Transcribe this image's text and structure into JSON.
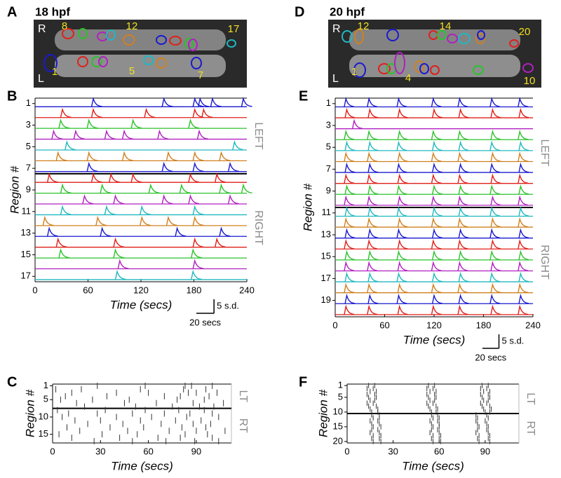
{
  "images": [
    {
      "panel": "A",
      "title": "18 hpf",
      "side_labels": [
        "R",
        "L"
      ],
      "region_labels": [
        "8",
        "12",
        "17",
        "1",
        "5",
        "7"
      ]
    },
    {
      "panel": "D",
      "title": "20 hpf",
      "side_labels": [
        "R",
        "L"
      ],
      "region_labels": [
        "12",
        "14",
        "20",
        "1",
        "4",
        "10"
      ]
    }
  ],
  "chart_data": [
    {
      "panel": "B",
      "type": "line",
      "ylabel": "Region #",
      "xlabel": "Time (secs)",
      "xlim": [
        0,
        240
      ],
      "xticks": [
        0,
        60,
        120,
        180,
        240
      ],
      "yticks": [
        1,
        3,
        5,
        7,
        9,
        11,
        13,
        15,
        17
      ],
      "side_labels": [
        "LEFT",
        "RIGHT"
      ],
      "divider_after": 7,
      "scale_bar": {
        "x": {
          "value": 20,
          "label": "20 secs"
        },
        "y": {
          "value": 5,
          "label": "5 s.d."
        }
      },
      "series": [
        {
          "color": "#1a1ad0",
          "events": [
            65,
            145,
            180,
            186,
            200,
            235
          ]
        },
        {
          "color": "#e0201a",
          "events": [
            30,
            65,
            125,
            180,
            190
          ]
        },
        {
          "color": "#2cc22c",
          "events": [
            28,
            60,
            110,
            175
          ]
        },
        {
          "color": "#b020c0",
          "events": [
            20,
            45,
            80,
            100,
            140,
            185
          ]
        },
        {
          "color": "#20b8c0",
          "events": [
            35,
            225
          ]
        },
        {
          "color": "#d08020",
          "events": [
            25,
            60,
            100,
            150,
            180,
            210
          ]
        },
        {
          "color": "#1a1ad0",
          "events": [
            60,
            145,
            180,
            220
          ]
        },
        {
          "color": "#e0201a",
          "events": [
            15,
            65,
            85,
            110,
            175,
            205
          ]
        },
        {
          "color": "#2cc22c",
          "events": [
            30,
            75,
            130,
            165,
            210,
            235
          ]
        },
        {
          "color": "#b020c0",
          "events": [
            55,
            90,
            145,
            175,
            220
          ]
        },
        {
          "color": "#20b8c0",
          "events": [
            30,
            80,
            120,
            180
          ]
        },
        {
          "color": "#d08020",
          "events": [
            10,
            70,
            120,
            150,
            180
          ]
        },
        {
          "color": "#1a1ad0",
          "events": [
            15,
            75,
            160,
            210
          ]
        },
        {
          "color": "#e0201a",
          "events": [
            25,
            90,
            180,
            205
          ]
        },
        {
          "color": "#2cc22c",
          "events": [
            28,
            90,
            178
          ]
        },
        {
          "color": "#b020c0",
          "events": [
            95,
            180
          ]
        },
        {
          "color": "#20b8c0",
          "events": [
            92,
            178
          ]
        }
      ]
    },
    {
      "panel": "C",
      "type": "raster",
      "ylabel": "Region #",
      "xlabel": "Time (secs)",
      "xlim": [
        0,
        112
      ],
      "xticks": [
        0,
        30,
        60,
        90
      ],
      "yticks": [
        1,
        5,
        10,
        15
      ],
      "side_labels": [
        "LT",
        "RT"
      ],
      "divider_after": 7,
      "series": [
        {
          "events": [
            28,
            58,
            83,
            87,
            100
          ]
        },
        {
          "events": [
            2,
            18,
            55,
            82,
            96
          ]
        },
        {
          "events": [
            12,
            40,
            60,
            85,
            90,
            103
          ]
        },
        {
          "events": [
            8,
            34,
            70,
            80,
            98
          ]
        },
        {
          "events": [
            5,
            25,
            48,
            78,
            95
          ]
        },
        {
          "events": [
            15,
            45,
            65,
            88,
            107
          ]
        },
        {
          "events": [
            20,
            52,
            75,
            92,
            101
          ]
        },
        {
          "events": [
            3,
            33,
            58,
            79,
            95
          ]
        },
        {
          "events": [
            10,
            28,
            50,
            70,
            86,
            100
          ]
        },
        {
          "events": [
            6,
            40,
            62,
            84,
            104
          ]
        },
        {
          "events": [
            14,
            30,
            55,
            77,
            93
          ]
        },
        {
          "events": [
            22,
            44,
            68,
            88,
            99
          ]
        },
        {
          "events": [
            9,
            36,
            57,
            81,
            96
          ]
        },
        {
          "events": [
            17,
            47,
            73,
            90,
            108
          ]
        },
        {
          "events": [
            4,
            31,
            53,
            83,
            97
          ]
        },
        {
          "events": [
            12,
            42,
            66,
            80,
            100
          ]
        },
        {
          "events": [
            26,
            50,
            71,
            89,
            104
          ]
        }
      ]
    },
    {
      "panel": "E",
      "type": "line",
      "ylabel": "Region #",
      "xlabel": "Time (secs)",
      "xlim": [
        0,
        240
      ],
      "xticks": [
        0,
        60,
        120,
        180,
        240
      ],
      "yticks": [
        1,
        3,
        5,
        7,
        9,
        11,
        13,
        15,
        17,
        19
      ],
      "side_labels": [
        "LEFT",
        "RIGHT"
      ],
      "divider_after": 10,
      "scale_bar": {
        "x": {
          "value": 20,
          "label": "20 secs"
        },
        "y": {
          "value": 5,
          "label": "5 s.d."
        }
      },
      "series": [
        {
          "color": "#1a1ad0",
          "events": [
            12,
            40,
            76,
            118,
            150,
            189,
            223
          ]
        },
        {
          "color": "#e0201a",
          "events": [
            13,
            41,
            77,
            119,
            151,
            190,
            224
          ]
        },
        {
          "color": "#b020c0",
          "events": [
            22
          ]
        },
        {
          "color": "#2cc22c",
          "events": [
            12,
            40,
            77,
            118,
            150,
            190,
            223
          ]
        },
        {
          "color": "#20b8c0",
          "events": [
            13,
            41,
            76,
            119,
            151,
            189,
            224
          ]
        },
        {
          "color": "#d08020",
          "events": [
            12,
            40,
            77,
            118,
            150,
            190,
            223
          ]
        },
        {
          "color": "#1a1ad0",
          "events": [
            13,
            41,
            76,
            119,
            151,
            189,
            224
          ]
        },
        {
          "color": "#e0201a",
          "events": [
            12,
            40,
            77,
            118,
            150,
            190,
            223
          ]
        },
        {
          "color": "#2cc22c",
          "events": [
            13,
            41,
            76,
            119,
            151,
            189,
            224
          ]
        },
        {
          "color": "#b020c0",
          "events": [
            12,
            40,
            77,
            118,
            150,
            190,
            223
          ]
        },
        {
          "color": "#20b8c0",
          "events": [
            13,
            41,
            76,
            119,
            151,
            189,
            224
          ]
        },
        {
          "color": "#d08020",
          "events": [
            12,
            40,
            77,
            118,
            150,
            190,
            223
          ]
        },
        {
          "color": "#1a1ad0",
          "events": [
            13,
            41,
            76,
            119,
            151,
            189,
            224
          ]
        },
        {
          "color": "#e0201a",
          "events": [
            12,
            40,
            77,
            118,
            150,
            190,
            223
          ]
        },
        {
          "color": "#2cc22c",
          "events": [
            13,
            41,
            76,
            119,
            151,
            189,
            224
          ]
        },
        {
          "color": "#b020c0",
          "events": [
            12,
            40,
            77,
            118,
            150,
            190,
            223
          ]
        },
        {
          "color": "#20b8c0",
          "events": [
            13,
            41,
            76,
            119,
            151,
            189,
            224
          ]
        },
        {
          "color": "#d08020",
          "events": [
            12,
            40,
            77,
            118,
            150,
            190,
            223
          ]
        },
        {
          "color": "#1a1ad0",
          "events": [
            13,
            41,
            76,
            119,
            151,
            189,
            224
          ]
        },
        {
          "color": "#e0201a",
          "events": [
            12,
            40,
            77,
            118,
            150,
            190,
            223
          ]
        }
      ]
    },
    {
      "panel": "F",
      "type": "raster",
      "ylabel": "Region #",
      "xlabel": "Time (secs)",
      "xlim": [
        0,
        112
      ],
      "xticks": [
        0,
        30,
        60,
        90
      ],
      "yticks": [
        1,
        5,
        10,
        15,
        20
      ],
      "side_labels": [
        "LT",
        "RT"
      ],
      "divider_after": 10,
      "series": [
        {
          "events": [
            14,
            18,
            53,
            57,
            88,
            92
          ]
        },
        {
          "events": [
            13,
            17,
            52,
            56,
            87,
            91
          ]
        },
        {
          "events": [
            15,
            19,
            54,
            58,
            89,
            93
          ]
        },
        {
          "events": [
            13,
            18,
            52,
            57,
            87,
            92
          ]
        },
        {
          "events": [
            14,
            19,
            53,
            58,
            88,
            93
          ]
        },
        {
          "events": [
            15,
            18,
            54,
            57,
            89,
            92
          ]
        },
        {
          "events": [
            13,
            17,
            52,
            56,
            87,
            91
          ]
        },
        {
          "events": [
            14,
            19,
            53,
            58,
            88,
            93
          ]
        },
        {
          "events": [
            15,
            20,
            54,
            59,
            89,
            94
          ]
        },
        {
          "events": [
            16,
            20,
            55,
            58,
            90,
            93
          ]
        },
        {
          "events": [
            16,
            21,
            55,
            59,
            84,
            91
          ]
        },
        {
          "events": [
            17,
            21,
            56,
            60,
            85,
            92
          ]
        },
        {
          "events": [
            15,
            20,
            54,
            59,
            84,
            90
          ]
        },
        {
          "events": [
            16,
            21,
            55,
            60,
            85,
            91
          ]
        },
        {
          "events": [
            17,
            22,
            56,
            60,
            86,
            92
          ]
        },
        {
          "events": [
            16,
            20,
            55,
            59,
            85,
            91
          ]
        },
        {
          "events": [
            15,
            21,
            54,
            60,
            84,
            92
          ]
        },
        {
          "events": [
            17,
            22,
            56,
            61,
            86,
            93
          ]
        },
        {
          "events": [
            16,
            21,
            55,
            60,
            85,
            92
          ]
        },
        {
          "events": [
            17,
            22,
            56,
            61,
            86,
            93
          ]
        }
      ]
    }
  ]
}
